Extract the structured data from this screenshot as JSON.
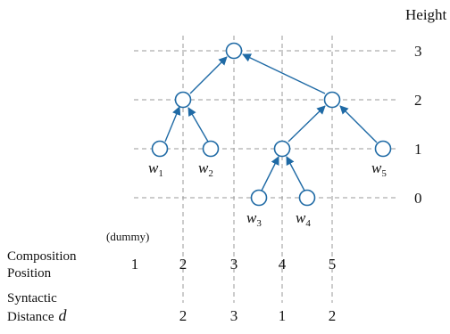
{
  "colors": {
    "node_stroke": "#1f6aa5",
    "grid": "#9a9a9a"
  },
  "axis": {
    "title": "Height",
    "ticks": [
      "0",
      "1",
      "2",
      "3"
    ]
  },
  "labels": {
    "dummy": "(dummy)",
    "composition_line1": "Composition",
    "composition_line2": "Position",
    "syntactic_line1": "Syntactic",
    "syntactic_line2": "Distance",
    "syntactic_symbol": "d"
  },
  "composition_positions": [
    "1",
    "2",
    "3",
    "4",
    "5"
  ],
  "syntactic_distances": [
    "2",
    "3",
    "1",
    "2"
  ],
  "words": [
    {
      "base": "w",
      "sub": "1"
    },
    {
      "base": "w",
      "sub": "2"
    },
    {
      "base": "w",
      "sub": "3"
    },
    {
      "base": "w",
      "sub": "4"
    },
    {
      "base": "w",
      "sub": "5"
    }
  ]
}
